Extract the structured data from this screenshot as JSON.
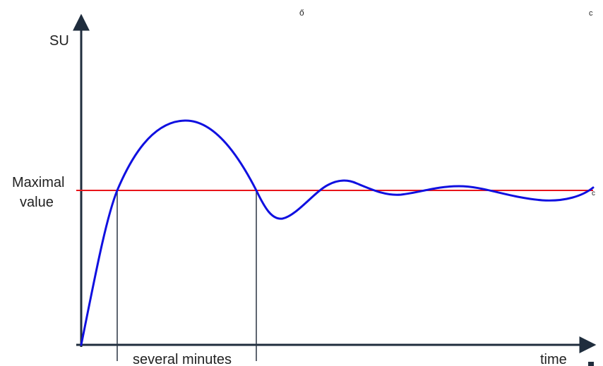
{
  "labels": {
    "y_axis": "SU",
    "x_axis": "time",
    "threshold_line1": "Maximal",
    "threshold_line2": "value",
    "interval": "several minutes"
  },
  "colors": {
    "axis": "#1f2d3d",
    "curve": "#1010e0",
    "threshold": "#e8141a",
    "marker": "#2a3442"
  }
}
